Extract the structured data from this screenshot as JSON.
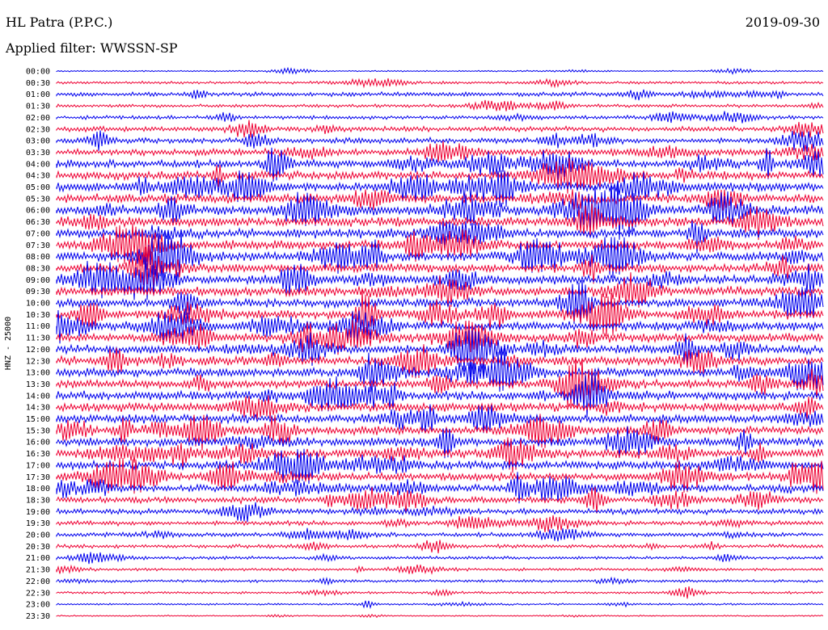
{
  "header": {
    "station": "HL Patra (P.P.C.)",
    "date": "2019-09-30",
    "filter": "Applied filter: WWSSN-SP"
  },
  "chart_data": {
    "type": "line",
    "ylabel": "HNZ - 25000",
    "row_labels": [
      "00:00",
      "00:30",
      "01:00",
      "01:30",
      "02:00",
      "02:30",
      "03:00",
      "03:30",
      "04:00",
      "04:30",
      "05:00",
      "05:30",
      "06:00",
      "06:30",
      "07:00",
      "07:30",
      "08:00",
      "08:30",
      "09:00",
      "09:30",
      "10:00",
      "10:30",
      "11:00",
      "11:30",
      "12:00",
      "12:30",
      "13:00",
      "13:30",
      "14:00",
      "14:30",
      "15:00",
      "15:30",
      "16:00",
      "16:30",
      "17:00",
      "17:30",
      "18:00",
      "18:30",
      "19:00",
      "19:30",
      "20:00",
      "20:30",
      "21:00",
      "21:30",
      "22:00",
      "22:30",
      "23:00",
      "23:30"
    ],
    "relative_amplitude": [
      0.15,
      0.3,
      0.45,
      0.35,
      0.4,
      0.55,
      0.6,
      0.75,
      0.85,
      0.9,
      1.0,
      1.0,
      1.0,
      1.0,
      1.0,
      1.0,
      1.0,
      1.0,
      1.0,
      1.0,
      0.95,
      0.95,
      0.95,
      0.95,
      0.95,
      0.95,
      0.95,
      0.95,
      0.95,
      0.95,
      0.95,
      0.95,
      0.95,
      0.95,
      0.9,
      0.85,
      0.8,
      0.7,
      0.6,
      0.5,
      0.45,
      0.4,
      0.35,
      0.3,
      0.3,
      0.25,
      0.2,
      0.15
    ],
    "colors": [
      "#0000ee",
      "#ee0033"
    ],
    "grid": false
  }
}
